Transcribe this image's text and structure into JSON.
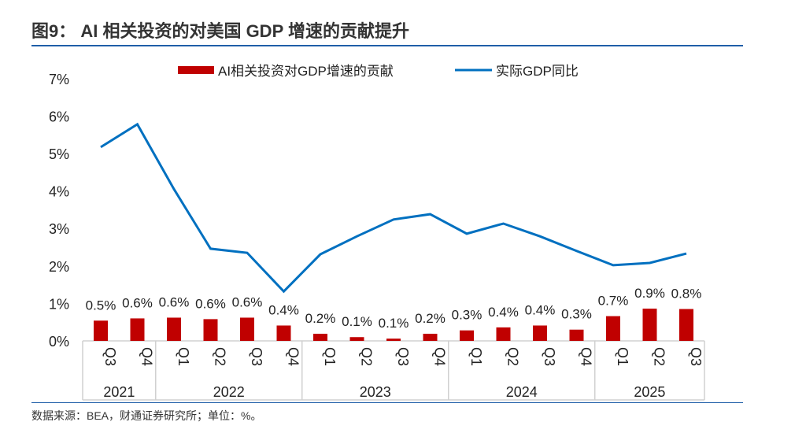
{
  "title": "图9： AI 相关投资的对美国 GDP 增速的贡献提升",
  "source": "数据来源：BEA，财通证券研究所；单位：%。",
  "chart_data": {
    "type": "bar+line",
    "categories": [
      "Q3",
      "Q4",
      "Q1",
      "Q2",
      "Q3",
      "Q4",
      "Q1",
      "Q2",
      "Q3",
      "Q4",
      "Q1",
      "Q2",
      "Q3",
      "Q4",
      "Q1",
      "Q2",
      "Q3"
    ],
    "years": [
      {
        "label": "2021",
        "count": 2
      },
      {
        "label": "2022",
        "count": 4
      },
      {
        "label": "2023",
        "count": 4
      },
      {
        "label": "2024",
        "count": 4
      },
      {
        "label": "2025",
        "count": 3
      }
    ],
    "ylim": [
      0,
      7
    ],
    "yticks": [
      "0%",
      "1%",
      "2%",
      "3%",
      "4%",
      "5%",
      "6%",
      "7%"
    ],
    "legend_position": "top",
    "grid": false,
    "series": [
      {
        "name": "AI相关投资对GDP增速的贡献",
        "type": "bar",
        "color": "#c00000",
        "values": [
          0.54,
          0.6,
          0.62,
          0.58,
          0.62,
          0.41,
          0.19,
          0.1,
          0.06,
          0.19,
          0.28,
          0.36,
          0.41,
          0.3,
          0.66,
          0.86,
          0.85
        ],
        "labels": [
          "0.5%",
          "0.6%",
          "0.6%",
          "0.6%",
          "0.6%",
          "0.4%",
          "0.2%",
          "0.1%",
          "0.1%",
          "0.2%",
          "0.3%",
          "0.4%",
          "0.4%",
          "0.3%",
          "0.7%",
          "0.9%",
          "0.8%"
        ]
      },
      {
        "name": "实际GDP同比",
        "type": "line",
        "color": "#0070c0",
        "values": [
          5.17,
          5.78,
          4.05,
          2.46,
          2.35,
          1.32,
          2.31,
          2.79,
          3.24,
          3.38,
          2.86,
          3.13,
          2.79,
          2.4,
          2.02,
          2.08,
          2.33
        ]
      }
    ]
  }
}
